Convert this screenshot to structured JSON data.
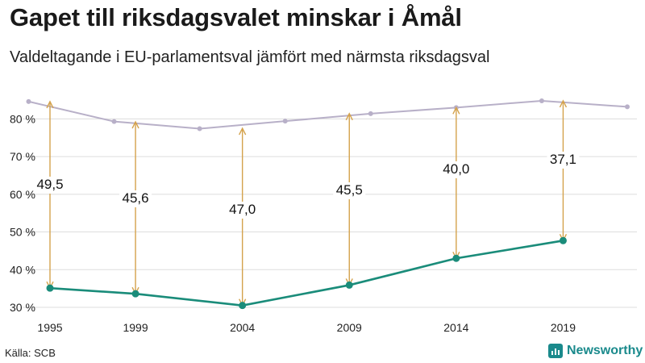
{
  "header": {
    "title": "Gapet till riksdagsvalet minskar i Åmål",
    "subtitle": "Valdeltagande i EU-parlamentsval jämfört med närmsta riksdagsval"
  },
  "footer": {
    "source": "Källa: SCB",
    "brand": "Newsworthy"
  },
  "colors": {
    "eu_line": "#1a8c7a",
    "riksdag_line": "#b8b0c8",
    "arrow": "#d4a24c",
    "grid": "#dddddd",
    "brand": "#1a8a8c"
  },
  "chart_data": {
    "type": "line",
    "title": "Gapet till riksdagsvalet minskar i Åmål",
    "subtitle": "Valdeltagande i EU-parlamentsval jämfört med närmsta riksdagsval",
    "xlim": [
      1995,
      2022
    ],
    "ylim": [
      28.5,
      88
    ],
    "x_ticks": [
      1995,
      1999,
      2004,
      2009,
      2014,
      2019
    ],
    "x_tick_labels": [
      "1995",
      "1999",
      "2004",
      "2009",
      "2014",
      "2019"
    ],
    "y_ticks": [
      30,
      40,
      50,
      60,
      70,
      80
    ],
    "y_tick_labels": [
      "30 %",
      "40 %",
      "50 %",
      "60 %",
      "70 %",
      "80 %"
    ],
    "grid": true,
    "series": [
      {
        "role": "riksdag",
        "x": [
          1994,
          1998,
          2002,
          2006,
          2010,
          2014,
          2018,
          2022
        ],
        "values": [
          84.6,
          79.3,
          77.4,
          79.4,
          81.4,
          83.0,
          84.8,
          83.2
        ]
      },
      {
        "role": "eu",
        "x": [
          1995,
          1999,
          2004,
          2009,
          2014,
          2019
        ],
        "values": [
          35.1,
          33.6,
          30.5,
          35.9,
          43.0,
          47.7
        ]
      }
    ],
    "gaps": [
      {
        "x": 1995,
        "label": "49,5",
        "from": 35.1,
        "to": 84.6
      },
      {
        "x": 1999,
        "label": "45,6",
        "from": 33.6,
        "to": 79.2
      },
      {
        "x": 2004,
        "label": "47,0",
        "from": 30.5,
        "to": 77.5
      },
      {
        "x": 2009,
        "label": "45,5",
        "from": 35.9,
        "to": 81.4
      },
      {
        "x": 2014,
        "label": "40,0",
        "from": 43.0,
        "to": 83.0
      },
      {
        "x": 2019,
        "label": "37,1",
        "from": 47.7,
        "to": 84.8
      }
    ]
  }
}
